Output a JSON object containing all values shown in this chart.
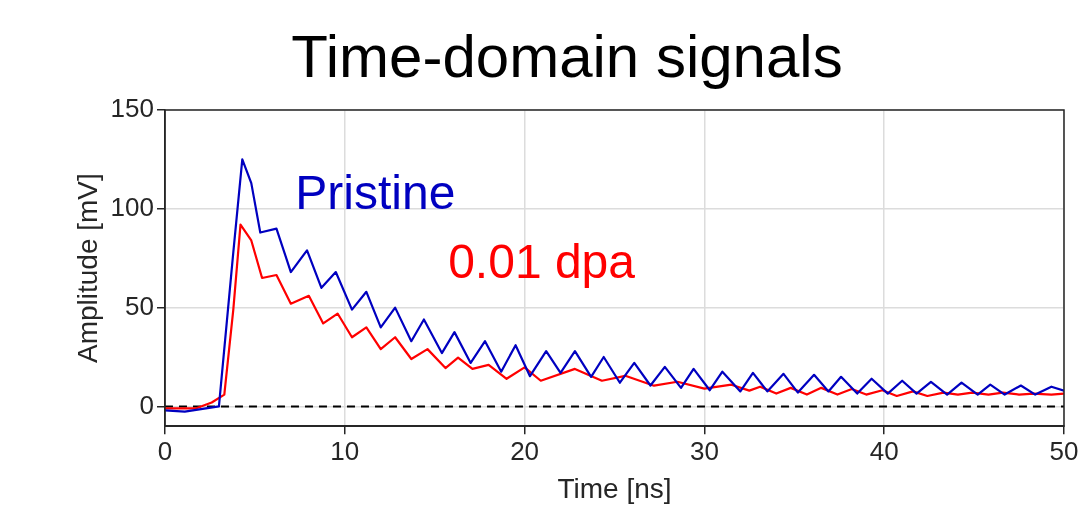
{
  "chart_data": {
    "type": "line",
    "title": "Time-domain signals",
    "xlabel": "Time [ns]",
    "ylabel": "Amplitude [mV]",
    "xlim": [
      0,
      50
    ],
    "xticks": [
      0,
      10,
      20,
      30,
      40,
      50
    ],
    "ylim": [
      -10,
      150
    ],
    "yticks": [
      0,
      50,
      100,
      150
    ],
    "grid": true,
    "legend": false,
    "marker": "none",
    "line_style": "solid",
    "ref_lines": [
      {
        "axis": "y",
        "value": 0,
        "color": "#000000",
        "line_style": "dashed"
      }
    ],
    "series": [
      {
        "name": "Pristine",
        "color": "#0000c0",
        "x": [
          0,
          1.1,
          3,
          3.8,
          4.3,
          4.8,
          5.3,
          6.2,
          7,
          7.9,
          8.7,
          9.5,
          10.4,
          11.2,
          12,
          12.8,
          13.7,
          14.4,
          15.4,
          16.1,
          17,
          17.8,
          18.7,
          19.5,
          20.3,
          21.2,
          22,
          22.8,
          23.7,
          24.4,
          25.3,
          26.1,
          27,
          27.8,
          28.7,
          29.4,
          30.3,
          31,
          32,
          32.7,
          33.5,
          34.4,
          35.2,
          36.1,
          36.9,
          37.6,
          38.5,
          39.3,
          40.2,
          41,
          41.8,
          42.6,
          43.5,
          44.3,
          45.2,
          45.9,
          46.7,
          47.6,
          48.4,
          49.3,
          50
        ],
        "values": [
          -2,
          -2.6,
          0,
          78,
          125,
          113,
          88,
          90,
          68,
          79,
          60,
          68,
          49,
          58,
          40,
          50,
          33,
          44,
          27,
          37.6,
          22,
          33,
          17.6,
          31,
          15.3,
          28,
          17,
          28,
          15,
          25,
          12,
          22,
          10.6,
          20,
          9.4,
          19,
          8.2,
          17.6,
          7.6,
          17,
          7.6,
          16.5,
          7,
          16,
          7.6,
          15,
          6.5,
          14,
          6.5,
          13,
          6.5,
          12.4,
          6,
          12,
          6,
          11,
          6,
          10.6,
          6,
          10,
          8
        ]
      },
      {
        "name": "0.01 dpa",
        "color": "#ff0000",
        "x": [
          0,
          1.7,
          2.6,
          3.3,
          3.8,
          4.2,
          4.8,
          5.4,
          6.2,
          7,
          8,
          8.8,
          9.6,
          10.4,
          11.2,
          12,
          12.8,
          13.7,
          14.6,
          15.6,
          16.3,
          17.1,
          18,
          19,
          20,
          20.9,
          22.8,
          24.3,
          25.6,
          27.2,
          28.5,
          30,
          31.5,
          32.5,
          33.1,
          34,
          34.8,
          35.7,
          36.5,
          37.4,
          38.2,
          39,
          39.9,
          40.7,
          41.6,
          42.4,
          43.3,
          44.1,
          44.9,
          45.8,
          46.6,
          47.5,
          48.3,
          49.3,
          50
        ],
        "values": [
          -1,
          -1,
          2,
          6,
          49,
          92,
          84,
          65,
          66.5,
          52,
          56,
          42,
          47,
          35,
          40,
          29,
          35,
          24,
          29,
          19.4,
          24.7,
          19,
          21,
          14,
          19.8,
          13,
          19,
          13,
          15.5,
          10.5,
          12.5,
          9,
          11,
          8,
          10,
          6.5,
          9.4,
          6,
          9.4,
          6,
          8.8,
          6,
          8.2,
          5.3,
          7.6,
          5.3,
          7,
          6,
          7,
          6,
          7,
          6,
          6.5,
          6,
          6.5
        ]
      }
    ]
  }
}
